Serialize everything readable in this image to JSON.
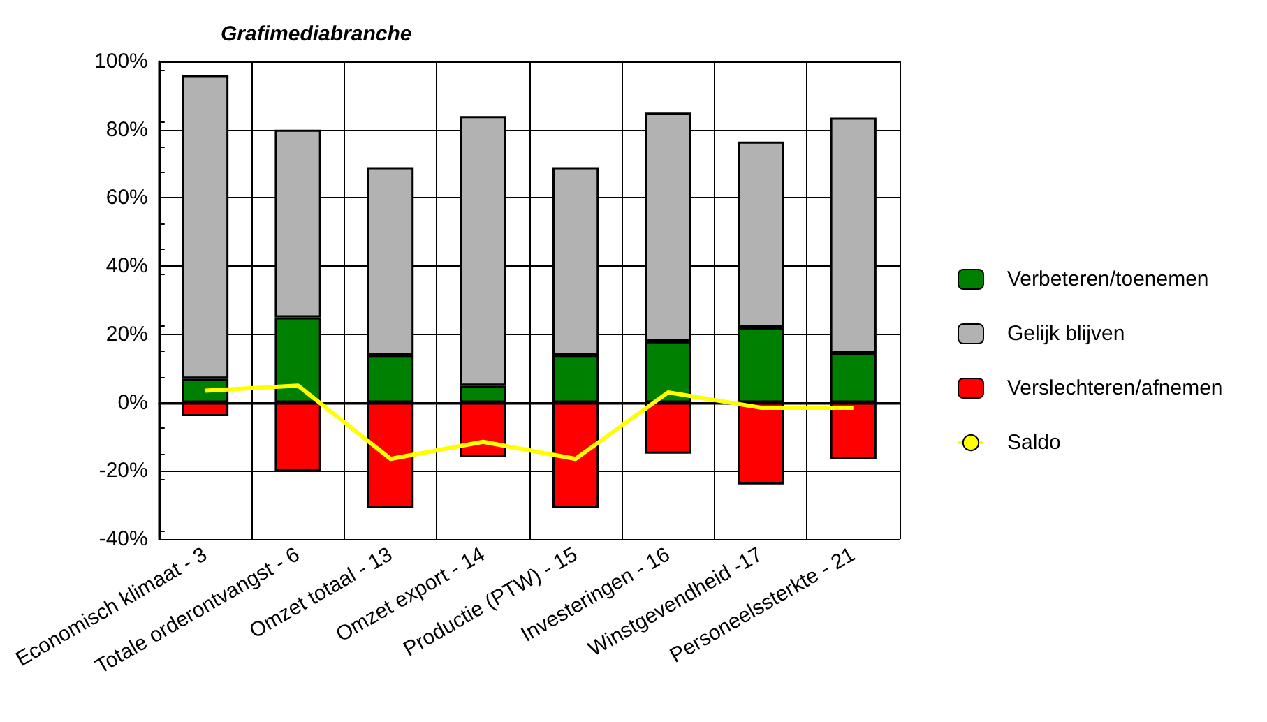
{
  "chart_data": {
    "type": "bar",
    "title": "Grafimediabranche",
    "categories": [
      "Economisch klimaat - 3",
      "Totale orderontvangst - 6",
      "Omzet totaal - 13",
      "Omzet export - 14",
      "Productie (PTW) - 15",
      "Investeringen - 16",
      "Winstgevendheid -17",
      "Personeelssterkte - 21"
    ],
    "series": [
      {
        "name": "Verbeteren/toenemen",
        "color": "#008000",
        "values": [
          7,
          25,
          14,
          5,
          14,
          18,
          22,
          14.5
        ]
      },
      {
        "name": "Gelijk blijven",
        "color": "#b2b2b2",
        "values": [
          89,
          55,
          55,
          79,
          55,
          67,
          54.5,
          69
        ]
      },
      {
        "name": "Verslechteren/afnemen",
        "color": "#ff0000",
        "values": [
          -4,
          -20,
          -31,
          -16,
          -31,
          -15,
          -24,
          -16.5
        ]
      },
      {
        "name": "Saldo",
        "type": "line",
        "color": "#ffff00",
        "values": [
          3.5,
          5,
          -16.5,
          -11.5,
          -16.5,
          3,
          -1.5,
          -1.5
        ]
      }
    ],
    "stacked": true,
    "ylim": [
      -40,
      100
    ],
    "yticks": [
      {
        "value": -40,
        "label": "-40%"
      },
      {
        "value": -20,
        "label": "-20%"
      },
      {
        "value": 0,
        "label": "0%"
      },
      {
        "value": 20,
        "label": "20%"
      },
      {
        "value": 40,
        "label": "40%"
      },
      {
        "value": 60,
        "label": "60%"
      },
      {
        "value": 80,
        "label": "80%"
      },
      {
        "value": 100,
        "label": "100%"
      }
    ],
    "grid": true,
    "legend": "right",
    "marker": "none"
  }
}
